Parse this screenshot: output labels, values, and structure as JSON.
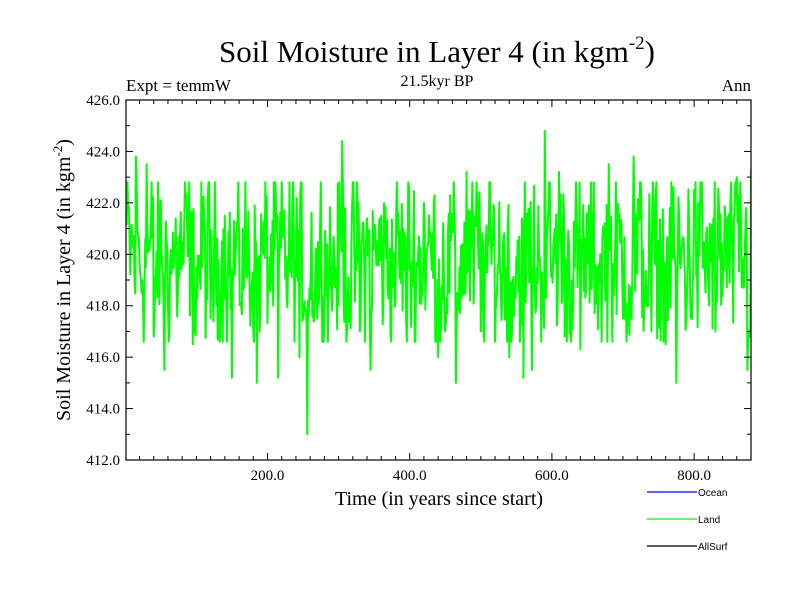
{
  "chart_data": {
    "type": "line",
    "title": "Soil Moisture in Layer 4 (in kgm",
    "title_exponent": "-2",
    "title_close": ")",
    "subtitle": "21.5kyr BP",
    "left_label": "Expt = temmW",
    "right_label": "Ann",
    "xlabel": "Time (in years since start)",
    "ylabel": "Soil Moisture in Layer 4 (in kgm",
    "ylabel_exponent": "-2",
    "ylabel_close": ")",
    "xlim": [
      1,
      880
    ],
    "ylim": [
      412,
      426
    ],
    "x_ticks": [
      200,
      400,
      600,
      800
    ],
    "x_tick_labels": [
      "200.0",
      "400.0",
      "600.0",
      "800.0"
    ],
    "y_ticks": [
      412,
      414,
      416,
      418,
      420,
      422,
      424,
      426
    ],
    "y_tick_labels": [
      "412.0",
      "414.0",
      "416.0",
      "418.0",
      "420.0",
      "422.0",
      "424.0",
      "426.0"
    ],
    "legend": [
      {
        "name": "Ocean",
        "color": "#0000ff"
      },
      {
        "name": "Land",
        "color": "#00ff00"
      },
      {
        "name": "AllSurf",
        "color": "#000000"
      }
    ],
    "series": [
      {
        "name": "Land",
        "color": "#00ff00",
        "x_start": 1,
        "x_step": 1,
        "mean": 419.8,
        "anchors": [
          [
            1,
            422.8
          ],
          [
            8,
            420.5
          ],
          [
            15,
            423.8
          ],
          [
            22,
            419.0
          ],
          [
            30,
            423.5
          ],
          [
            40,
            416.8
          ],
          [
            55,
            415.5
          ],
          [
            70,
            420.0
          ],
          [
            95,
            416.5
          ],
          [
            120,
            417.5
          ],
          [
            140,
            421.5
          ],
          [
            150,
            415.2
          ],
          [
            185,
            415.0
          ],
          [
            215,
            415.2
          ],
          [
            245,
            416.0
          ],
          [
            256,
            413.0
          ],
          [
            270,
            417.5
          ],
          [
            290,
            418.5
          ],
          [
            305,
            424.4
          ],
          [
            330,
            417.0
          ],
          [
            345,
            415.5
          ],
          [
            360,
            421.5
          ],
          [
            395,
            417.5
          ],
          [
            420,
            422.0
          ],
          [
            440,
            416.0
          ],
          [
            465,
            415.0
          ],
          [
            480,
            423.2
          ],
          [
            500,
            417.0
          ],
          [
            510,
            420.5
          ],
          [
            540,
            416.0
          ],
          [
            560,
            415.2
          ],
          [
            572,
            415.5
          ],
          [
            590,
            424.8
          ],
          [
            610,
            423.2
          ],
          [
            640,
            416.3
          ],
          [
            680,
            423.5
          ],
          [
            700,
            417.5
          ],
          [
            715,
            423.8
          ],
          [
            740,
            417.0
          ],
          [
            760,
            416.5
          ],
          [
            775,
            415.0
          ],
          [
            800,
            422.5
          ],
          [
            830,
            417.0
          ],
          [
            860,
            423.0
          ],
          [
            875,
            415.5
          ],
          [
            880,
            423.3
          ]
        ]
      }
    ]
  }
}
